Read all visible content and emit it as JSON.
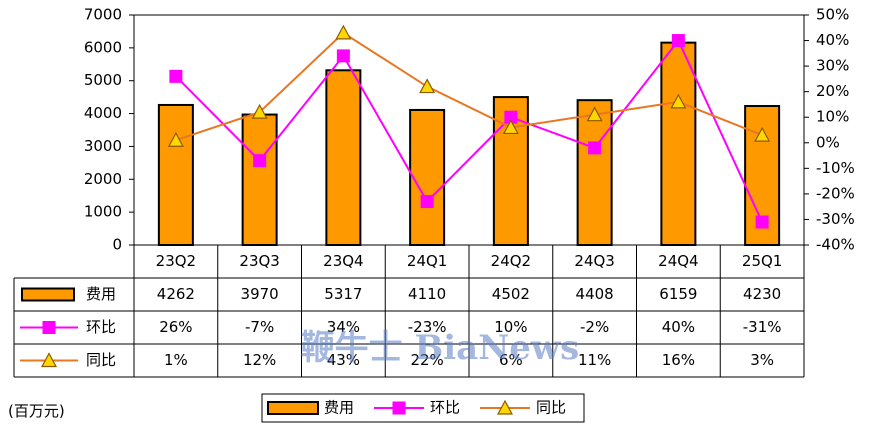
{
  "chart_data": {
    "type": "bar",
    "categories": [
      "23Q2",
      "23Q3",
      "23Q4",
      "24Q1",
      "24Q2",
      "24Q3",
      "24Q4",
      "25Q1"
    ],
    "series": [
      {
        "name": "费用",
        "type": "bar",
        "axis": "left",
        "values": [
          4262,
          3970,
          5317,
          4110,
          4502,
          4408,
          6159,
          4230
        ],
        "labels": [
          "4262",
          "3970",
          "5317",
          "4110",
          "4502",
          "4408",
          "6159",
          "4230"
        ],
        "color": "#FF9900"
      },
      {
        "name": "环比",
        "type": "line",
        "axis": "right",
        "marker": "square",
        "values": [
          26,
          -7,
          34,
          -23,
          10,
          -2,
          40,
          -31
        ],
        "labels": [
          "26%",
          "-7%",
          "34%",
          "-23%",
          "10%",
          "-2%",
          "40%",
          "-31%"
        ],
        "color": "#FF00FF"
      },
      {
        "name": "同比",
        "type": "line",
        "axis": "right",
        "marker": "triangle",
        "values": [
          1,
          12,
          43,
          22,
          6,
          11,
          16,
          3
        ],
        "labels": [
          "1%",
          "12%",
          "43%",
          "22%",
          "6%",
          "11%",
          "16%",
          "3%"
        ],
        "color": "#E87722"
      }
    ],
    "y_left": {
      "min": 0,
      "max": 7000,
      "step": 1000,
      "ticks": [
        "0",
        "1000",
        "2000",
        "3000",
        "4000",
        "5000",
        "6000",
        "7000"
      ]
    },
    "y_right": {
      "min": -40,
      "max": 50,
      "step": 10,
      "ticks": [
        "-40%",
        "-30%",
        "-20%",
        "-10%",
        "0%",
        "10%",
        "20%",
        "30%",
        "40%",
        "50%"
      ]
    },
    "grid": false,
    "legend": "bottom",
    "data_table": true
  },
  "unit_label": "(百万元)",
  "watermark": "鞭牛士 BiaNews"
}
